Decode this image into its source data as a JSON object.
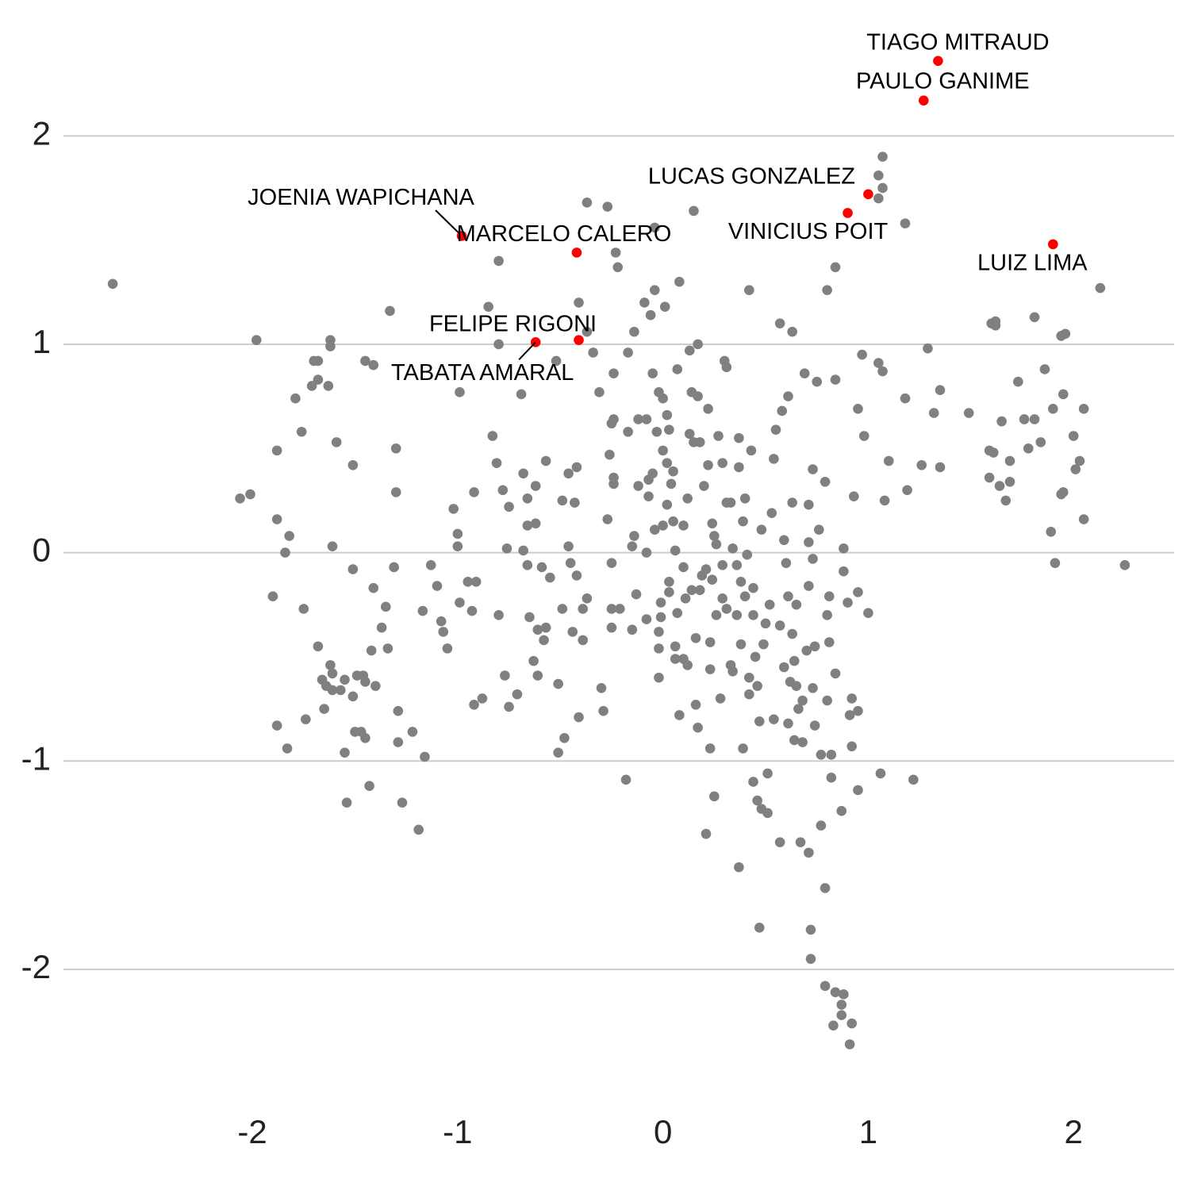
{
  "chart_data": {
    "type": "scatter",
    "grid": true,
    "xlim": [
      -2.92,
      2.49
    ],
    "ylim": [
      -2.45,
      2.5
    ],
    "xticks": [
      -2,
      -1,
      0,
      1,
      2
    ],
    "yticks": [
      -2,
      -1,
      0,
      1,
      2
    ],
    "series": [
      {
        "color": "#808080",
        "x": [
          -2.68,
          -1.98,
          -2.06,
          -2.01,
          -1.88,
          -1.88,
          -1.84,
          -1.82,
          -1.9,
          -1.75,
          -1.79,
          -1.76,
          -1.71,
          -1.7,
          -1.68,
          -1.68,
          -1.63,
          -1.62,
          -1.62,
          -1.59,
          -1.61,
          -1.68,
          -1.62,
          -1.61,
          -1.66,
          -1.64,
          -1.61,
          -1.57,
          -1.65,
          -1.74,
          -1.88,
          -1.83,
          -1.55,
          -1.51,
          -1.49,
          -1.46,
          -1.45,
          -1.4,
          -1.5,
          -1.47,
          -1.45,
          -1.55,
          -1.54,
          -1.43,
          -1.51,
          -1.51,
          -1.45,
          -1.41,
          -1.41,
          -1.42,
          -1.37,
          -1.35,
          -1.34,
          -1.33,
          -1.3,
          -1.3,
          -1.31,
          -1.29,
          -1.29,
          -1.27,
          -1.22,
          -1.19,
          -1.16,
          -1.17,
          -1.13,
          -1.1,
          -1.08,
          -1.07,
          -1.05,
          -1.02,
          -1.0,
          -1.0,
          -0.99,
          -0.99,
          -0.95,
          -0.93,
          -0.92,
          -0.91,
          -0.92,
          -0.88,
          -0.85,
          -0.83,
          -0.81,
          -0.8,
          -0.8,
          -0.8,
          -0.78,
          -0.77,
          -0.75,
          -0.76,
          -0.75,
          -0.71,
          -0.69,
          -0.68,
          -0.68,
          -0.66,
          -0.66,
          -0.66,
          -0.65,
          -0.63,
          -0.62,
          -0.62,
          -0.61,
          -0.61,
          -0.59,
          -0.58,
          -0.57,
          -0.57,
          -0.55,
          -0.52,
          -0.51,
          -0.51,
          -0.49,
          -0.49,
          -0.48,
          -0.46,
          -0.46,
          -0.45,
          -0.44,
          -0.43,
          -0.42,
          -0.42,
          -0.41,
          -0.41,
          -0.39,
          -0.39,
          -0.37,
          -0.37,
          -0.37,
          -0.34,
          -0.31,
          -0.3,
          -0.29,
          -0.27,
          -0.27,
          -0.26,
          -0.25,
          -0.25,
          -0.24,
          -0.24,
          -0.24,
          -0.23,
          -0.22,
          -0.25,
          -0.21,
          -0.24,
          -0.25,
          -0.17,
          -0.18,
          -0.17,
          -0.15,
          -0.14,
          -0.14,
          -0.15,
          -0.13,
          -0.12,
          -0.12,
          -0.09,
          -0.08,
          -0.08,
          -0.08,
          -0.07,
          -0.07,
          -0.06,
          -0.05,
          -0.05,
          -0.04,
          -0.04,
          -0.04,
          -0.03,
          -0.02,
          -0.02,
          -0.02,
          -0.02,
          -0.01,
          -0.01,
          0.0,
          0.0,
          0.0,
          0.01,
          0.02,
          0.02,
          0.02,
          0.03,
          0.03,
          0.03,
          0.04,
          0.05,
          0.05,
          0.06,
          0.06,
          0.06,
          0.07,
          0.07,
          0.08,
          0.08,
          0.1,
          0.1,
          0.1,
          0.11,
          0.12,
          0.12,
          0.13,
          0.13,
          0.14,
          0.14,
          0.15,
          0.15,
          0.16,
          0.16,
          0.17,
          0.17,
          0.17,
          0.18,
          0.18,
          0.19,
          0.2,
          0.21,
          0.21,
          0.22,
          0.22,
          0.23,
          0.23,
          0.23,
          0.24,
          0.24,
          0.25,
          0.25,
          0.26,
          0.26,
          0.27,
          0.28,
          0.29,
          0.29,
          0.29,
          0.3,
          0.31,
          0.31,
          0.31,
          0.33,
          0.33,
          0.34,
          0.34,
          0.36,
          0.36,
          0.37,
          0.37,
          0.37,
          0.38,
          0.38,
          0.39,
          0.39,
          0.4,
          0.4,
          0.41,
          0.42,
          0.42,
          0.42,
          0.43,
          0.44,
          0.44,
          0.44,
          0.45,
          0.46,
          0.46,
          0.47,
          0.47,
          0.48,
          0.48,
          0.49,
          0.5,
          0.51,
          0.51,
          0.52,
          0.53,
          0.54,
          0.54,
          0.55,
          0.57,
          0.57,
          0.57,
          0.58,
          0.59,
          0.59,
          0.6,
          0.61,
          0.61,
          0.61,
          0.62,
          0.63,
          0.63,
          0.63,
          0.64,
          0.64,
          0.65,
          0.65,
          0.66,
          0.67,
          0.68,
          0.68,
          0.69,
          0.7,
          0.71,
          0.71,
          0.71,
          0.71,
          0.72,
          0.72,
          0.73,
          0.73,
          0.73,
          0.74,
          0.74,
          0.75,
          0.76,
          0.77,
          0.77,
          0.79,
          0.79,
          0.79,
          0.8,
          0.8,
          0.8,
          0.81,
          0.81,
          0.82,
          0.82,
          0.83,
          0.84,
          0.84,
          0.84,
          0.84,
          0.87,
          0.87,
          0.87,
          0.88,
          0.88,
          0.88,
          0.91,
          0.9,
          0.91,
          0.92,
          0.92,
          0.92,
          0.93,
          0.95,
          0.95,
          0.95,
          0.95,
          0.97,
          0.98,
          1.0,
          1.05,
          1.05,
          1.05,
          1.06,
          1.07,
          1.07,
          1.07,
          1.08,
          1.1,
          1.18,
          1.18,
          1.19,
          1.22,
          1.26,
          1.29,
          1.32,
          1.35,
          1.35,
          1.49,
          1.59,
          1.59,
          1.6,
          1.61,
          1.62,
          1.62,
          1.64,
          1.65,
          1.67,
          1.69,
          1.69,
          1.73,
          1.76,
          1.78,
          1.81,
          1.81,
          1.84,
          1.86,
          1.89,
          1.9,
          1.91,
          1.94,
          1.94,
          1.95,
          1.95,
          1.96,
          2.0,
          2.01,
          2.03,
          2.05,
          2.05,
          2.13,
          2.25
        ],
        "values": [
          1.29,
          1.02,
          0.26,
          0.28,
          0.49,
          0.16,
          0.0,
          0.08,
          -0.21,
          -0.27,
          0.74,
          0.58,
          0.8,
          0.92,
          0.92,
          0.83,
          0.8,
          1.02,
          0.99,
          0.53,
          0.03,
          -0.45,
          -0.54,
          -0.58,
          -0.61,
          -0.64,
          -0.66,
          -0.66,
          -0.75,
          -0.8,
          -0.83,
          -0.94,
          -0.61,
          -0.69,
          -0.59,
          -0.59,
          -0.62,
          -0.64,
          -0.86,
          -0.86,
          -0.89,
          -0.96,
          -1.2,
          -1.12,
          0.42,
          -0.08,
          0.92,
          0.9,
          -0.17,
          -0.47,
          -0.36,
          -0.26,
          -0.46,
          1.16,
          0.5,
          0.29,
          -0.07,
          -0.76,
          -0.91,
          -1.2,
          -0.86,
          -1.33,
          -0.98,
          -0.28,
          -0.06,
          -0.16,
          -0.33,
          -0.38,
          -0.46,
          0.21,
          0.09,
          0.03,
          -0.24,
          0.77,
          -0.14,
          -0.28,
          0.29,
          -0.14,
          -0.73,
          -0.7,
          1.18,
          0.56,
          0.43,
          1.4,
          1.0,
          -0.3,
          0.3,
          -0.59,
          0.22,
          0.02,
          -0.74,
          -0.68,
          0.76,
          0.38,
          0.01,
          0.26,
          0.13,
          -0.06,
          -0.31,
          -0.52,
          0.32,
          0.14,
          -0.37,
          -0.59,
          -0.07,
          -0.42,
          -0.36,
          0.44,
          -0.12,
          0.92,
          -0.63,
          -0.96,
          0.25,
          -0.27,
          -0.89,
          0.38,
          0.03,
          -0.05,
          -0.38,
          0.24,
          0.41,
          -0.11,
          1.2,
          -0.79,
          -0.42,
          -0.27,
          1.68,
          1.06,
          -0.22,
          0.96,
          0.77,
          -0.65,
          -0.76,
          0.16,
          1.66,
          0.47,
          0.62,
          -0.05,
          0.64,
          0.36,
          0.33,
          1.44,
          1.37,
          -0.27,
          -0.27,
          0.86,
          -0.36,
          0.58,
          -1.09,
          0.96,
          0.03,
          1.06,
          0.08,
          -0.37,
          -0.2,
          0.32,
          0.64,
          1.2,
          0.0,
          -0.32,
          0.64,
          0.27,
          0.35,
          1.14,
          0.86,
          0.38,
          1.56,
          0.11,
          1.26,
          0.58,
          0.77,
          -0.6,
          -0.46,
          -0.38,
          -0.24,
          -0.31,
          0.49,
          0.13,
          0.74,
          1.18,
          0.43,
          0.23,
          0.66,
          -0.14,
          -0.19,
          0.59,
          0.33,
          0.15,
          0.39,
          0.01,
          -0.45,
          -0.51,
          0.88,
          -0.29,
          -0.78,
          1.3,
          0.13,
          -0.07,
          -0.51,
          -0.22,
          -0.54,
          0.26,
          0.57,
          0.97,
          -0.18,
          0.77,
          1.64,
          0.53,
          -0.73,
          -0.41,
          0.75,
          1.0,
          -0.84,
          -0.18,
          0.53,
          -0.11,
          0.32,
          -1.35,
          -0.08,
          0.69,
          0.42,
          -0.43,
          -0.56,
          -0.94,
          0.14,
          -0.13,
          0.08,
          -1.17,
          -0.3,
          0.04,
          0.56,
          -0.7,
          -0.06,
          -0.22,
          0.43,
          0.92,
          0.24,
          0.89,
          -0.27,
          -0.54,
          0.24,
          0.02,
          -0.57,
          -0.3,
          -0.06,
          0.41,
          0.55,
          -1.51,
          -0.14,
          -0.44,
          -0.94,
          0.15,
          0.26,
          -0.21,
          -0.01,
          -0.68,
          1.26,
          -0.6,
          0.49,
          -1.1,
          -0.17,
          -0.3,
          -0.5,
          -1.19,
          -0.64,
          -0.81,
          -1.8,
          -1.23,
          0.11,
          -0.44,
          -0.34,
          -1.06,
          -1.25,
          -0.25,
          0.19,
          0.45,
          -0.8,
          0.59,
          -0.35,
          1.1,
          -1.39,
          0.68,
          -0.55,
          0.06,
          -0.05,
          -0.21,
          0.75,
          -0.82,
          -0.62,
          1.06,
          -0.39,
          0.24,
          -0.9,
          -0.52,
          -0.64,
          -0.25,
          -0.75,
          -1.39,
          -0.71,
          -0.91,
          0.86,
          -0.47,
          0.23,
          0.05,
          -1.44,
          -0.16,
          -1.81,
          -1.95,
          0.4,
          -0.03,
          -0.65,
          -0.45,
          -0.83,
          0.82,
          0.11,
          -0.97,
          -1.31,
          -1.61,
          0.34,
          -2.08,
          1.26,
          -0.3,
          -0.71,
          -0.21,
          -0.43,
          -0.97,
          -1.08,
          -2.27,
          1.37,
          0.83,
          -0.58,
          -2.11,
          -2.17,
          -1.24,
          -2.22,
          0.02,
          -0.09,
          -2.12,
          -2.36,
          -0.24,
          -0.78,
          -0.93,
          -2.26,
          -0.7,
          0.27,
          -1.14,
          -0.19,
          -0.76,
          0.69,
          0.95,
          0.56,
          -0.29,
          0.91,
          1.81,
          1.7,
          -1.06,
          1.9,
          1.75,
          0.87,
          0.25,
          0.44,
          0.74,
          1.58,
          0.3,
          -1.09,
          0.42,
          0.98,
          0.67,
          0.78,
          0.41,
          0.67,
          0.49,
          0.36,
          1.1,
          0.48,
          1.11,
          1.09,
          0.32,
          0.63,
          0.25,
          0.44,
          0.34,
          0.82,
          0.64,
          0.5,
          1.13,
          0.64,
          0.53,
          0.88,
          0.1,
          0.69,
          -0.05,
          0.28,
          1.04,
          0.76,
          0.29,
          1.05,
          0.56,
          0.4,
          0.44,
          0.16,
          0.69,
          1.27,
          -0.06
        ]
      },
      {
        "color": "#ff0000",
        "x": [
          1.34,
          1.27,
          1.0,
          0.9,
          1.9,
          -0.98,
          -0.42,
          -0.41,
          -0.62
        ],
        "values": [
          2.36,
          2.17,
          1.72,
          1.63,
          1.48,
          1.52,
          1.44,
          1.02,
          1.01
        ],
        "labels": [
          "TIAGO MITRAUD",
          "PAULO GANIME",
          "LUCAS GONZALEZ",
          "VINICIUS POIT",
          "LUIZ LIMA",
          "JOENIA WAPICHANA",
          "MARCELO CALERO",
          "FELIPE RIGONI",
          "TABATA AMARAL"
        ]
      }
    ]
  }
}
